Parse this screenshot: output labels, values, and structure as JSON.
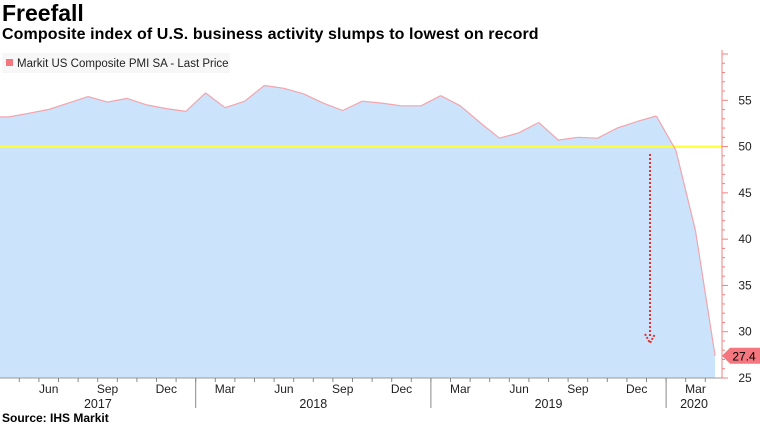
{
  "header": {
    "title": "Freefall",
    "subtitle": "Composite index of U.S. business activity slumps to lowest on record"
  },
  "footer": {
    "source": "Source: IHS Markit"
  },
  "colors": {
    "area_fill": "#cce4fb",
    "line": "#f2a4ad",
    "reference_line": "#ffff33",
    "axis": "#f08080",
    "last_price_tag": "#f4777f",
    "arrow": "#e03030"
  },
  "chart_data": {
    "type": "area",
    "title": "Freefall",
    "series": [
      {
        "name": "Markit US Composite PMI SA - Last Price",
        "values": [
          53.2,
          53.6,
          54.0,
          54.7,
          55.4,
          54.8,
          55.2,
          54.5,
          54.1,
          53.8,
          55.8,
          54.2,
          54.9,
          56.6,
          56.3,
          55.7,
          54.7,
          53.9,
          54.9,
          54.7,
          54.4,
          54.4,
          55.5,
          54.4,
          52.6,
          50.9,
          51.5,
          52.6,
          50.7,
          51.0,
          50.9,
          52.0,
          52.7,
          53.3,
          49.6,
          40.9,
          27.4
        ]
      }
    ],
    "ylim": [
      25,
      60
    ],
    "yticks": [
      25,
      30,
      35,
      40,
      45,
      50,
      55
    ],
    "reference_line": 50,
    "last_price": "27.4",
    "month_ticks": [
      "Jun",
      "Sep",
      "Dec",
      "Mar",
      "Jun",
      "Sep",
      "Dec",
      "Mar",
      "Jun",
      "Sep",
      "Dec",
      "Mar"
    ],
    "year_labels": [
      "2017",
      "2018",
      "2019",
      "2020"
    ],
    "legend": "Markit US Composite PMI SA - Last Price",
    "xlabel": "",
    "ylabel": ""
  }
}
